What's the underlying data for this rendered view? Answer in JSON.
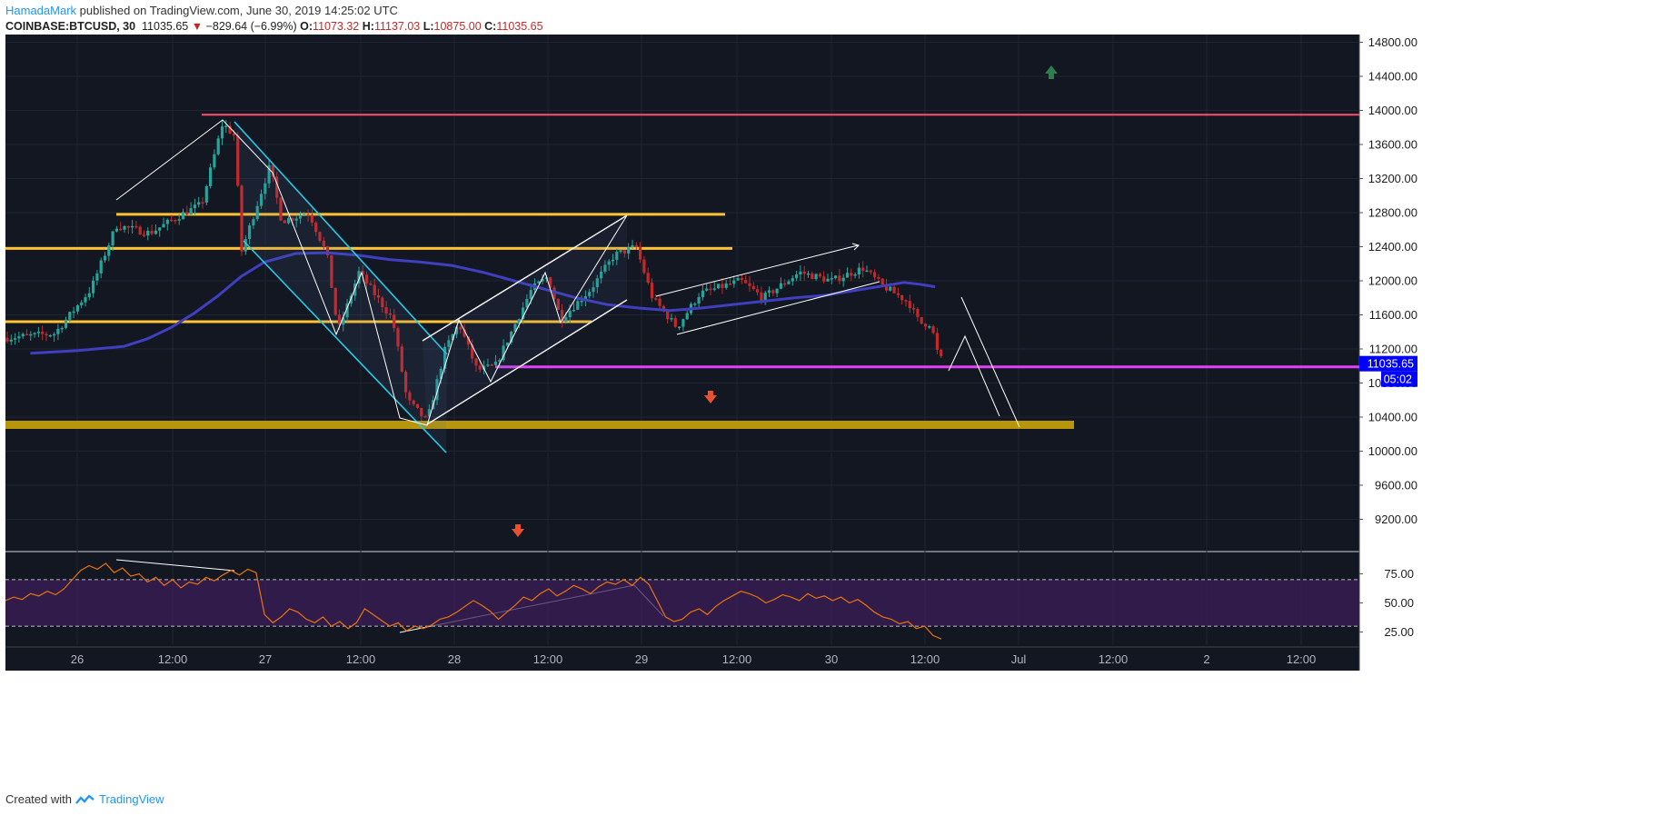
{
  "header": {
    "author": "HamadaMark",
    "published_text": "published on TradingView.com, June 30, 2019 14:25:02 UTC"
  },
  "symbol_bar": {
    "symbol": "COINBASE:BTCUSD, 30",
    "last": "11035.65",
    "change_arrow": "▼",
    "change": "−829.64 (−6.99%)",
    "o_label": "O:",
    "o_value": "11073.32",
    "h_label": "H:",
    "h_value": "11137.03",
    "l_label": "L:",
    "l_value": "10875.00",
    "c_label": "C:",
    "c_value": "11035.65"
  },
  "footer": {
    "created_with": "Created with",
    "brand": "TradingView",
    "logo_icon": "tradingview-logo-icon"
  },
  "colors": {
    "background": "#131722",
    "up": "#26a69a",
    "down": "#c62828",
    "ma": "#3f3fbf",
    "support": "#b8960c",
    "resistance": "#ff4d6d",
    "level": "#ffc233",
    "current": "#e040fb",
    "channel": "#22d3ee",
    "rsi": "#e8740c",
    "rsi_band": "#3b1d5a",
    "price_tag": "#0000ff"
  },
  "chart_data": [
    {
      "type": "candlestick",
      "symbol": "COINBASE:BTCUSD",
      "timeframe": "30",
      "x_tick_labels": [
        "26",
        "12:00",
        "27",
        "12:00",
        "28",
        "12:00",
        "29",
        "12:00",
        "30",
        "12:00",
        "Jul",
        "12:00",
        "2",
        "12:00"
      ],
      "y_tick_labels": [
        "14800.00",
        "14400.00",
        "14000.00",
        "13600.00",
        "13200.00",
        "12800.00",
        "12400.00",
        "12000.00",
        "11600.00",
        "11200.00",
        "10800.00",
        "10400.00",
        "10000.00",
        "9600.00",
        "9200.00"
      ],
      "ylim": [
        8800,
        14900
      ],
      "current_price_label": "11035.65",
      "countdown_label": "05:02",
      "ma_values": [
        11150,
        11180,
        11230,
        11320,
        11450,
        11620,
        11820,
        12050,
        12220,
        12320,
        12330,
        12300,
        12250,
        12220,
        12180,
        12100,
        12000,
        11900,
        11800,
        11720,
        11680,
        11650,
        11680,
        11720,
        11760,
        11800,
        11830,
        11890,
        11950,
        11980,
        11960,
        11930
      ],
      "ma_x": [
        "25 18:00",
        "26 00:00",
        "26 06:00",
        "26 09:00",
        "26 12:00",
        "26 15:00",
        "26 18:00",
        "26 21:00",
        "27 00:00",
        "27 04:00",
        "27 08:00",
        "27 12:00",
        "27 16:00",
        "27 20:00",
        "28 00:00",
        "28 04:00",
        "28 08:00",
        "28 12:00",
        "28 16:00",
        "28 20:00",
        "29 00:00",
        "29 04:00",
        "29 08:00",
        "29 12:00",
        "29 16:00",
        "29 20:00",
        "30 00:00",
        "30 04:00",
        "30 08:00",
        "30 10:00",
        "30 12:00",
        "30 14:00"
      ],
      "horizontal_levels": [
        {
          "price": 13950,
          "kind": "resistance"
        },
        {
          "price": 12780,
          "kind": "level"
        },
        {
          "price": 12380,
          "kind": "level"
        },
        {
          "price": 11520,
          "kind": "level"
        },
        {
          "price": 10990,
          "kind": "current"
        },
        {
          "price": 10310,
          "kind": "support"
        }
      ]
    },
    {
      "type": "line",
      "indicator": "RSI",
      "y_tick_labels": [
        "75.00",
        "50.00",
        "25.00"
      ],
      "ylim": [
        15,
        90
      ],
      "band": [
        30,
        70
      ],
      "values": [
        52,
        55,
        53,
        58,
        56,
        60,
        57,
        62,
        70,
        78,
        82,
        79,
        84,
        76,
        80,
        73,
        75,
        68,
        72,
        65,
        70,
        63,
        68,
        66,
        72,
        69,
        74,
        78,
        74,
        79,
        76,
        40,
        33,
        38,
        45,
        42,
        36,
        33,
        38,
        30,
        34,
        28,
        33,
        45,
        40,
        35,
        30,
        33,
        26,
        30,
        28,
        31,
        36,
        38,
        42,
        47,
        52,
        48,
        43,
        36,
        42,
        48,
        55,
        52,
        58,
        62,
        56,
        60,
        65,
        62,
        58,
        64,
        68,
        66,
        70,
        65,
        72,
        66,
        52,
        38,
        34,
        36,
        42,
        45,
        40,
        47,
        52,
        56,
        60,
        58,
        55,
        50,
        53,
        57,
        55,
        52,
        58,
        54,
        56,
        52,
        55,
        50,
        53,
        48,
        42,
        38,
        36,
        32,
        34,
        28,
        30,
        22,
        19
      ]
    }
  ]
}
